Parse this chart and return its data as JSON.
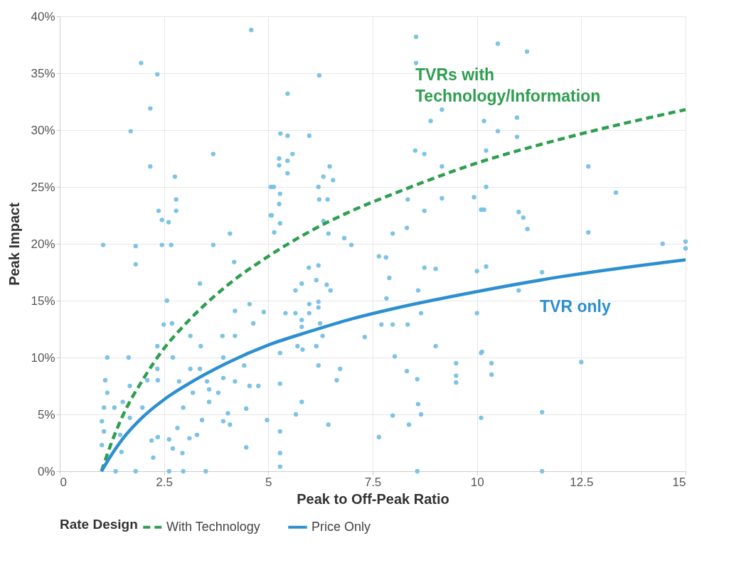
{
  "chart_data": {
    "type": "scatter",
    "xlabel": "Peak to Off-Peak Ratio",
    "ylabel": "Peak Impact",
    "legend_title": "Rate Design",
    "legend": "bottom",
    "grid": true,
    "xlim": [
      0,
      15
    ],
    "xticks": [
      {
        "value": 0,
        "label": "0"
      },
      2.5,
      {
        "value": 5,
        "label": "5"
      },
      7.5,
      {
        "value": 10,
        "label": "10"
      },
      12.5,
      {
        "value": 15,
        "label": "15"
      }
    ],
    "ylim": [
      0,
      40
    ],
    "yticks": [
      {
        "value": 0,
        "label": "0%"
      },
      {
        "value": 5,
        "label": "5%"
      },
      {
        "value": 10,
        "label": "10%"
      },
      {
        "value": 15,
        "label": "15%"
      },
      {
        "value": 20,
        "label": "20%"
      },
      {
        "value": 25,
        "label": "25%"
      },
      {
        "value": 30,
        "label": "30%"
      },
      {
        "value": 35,
        "label": "35%"
      },
      {
        "value": 40,
        "label": "40%"
      }
    ],
    "annotations": [
      "TVRs with\nTechnology/Information",
      "TVR only"
    ],
    "series": [
      {
        "marker": "circle",
        "color": "#7cc3e6",
        "x": [
          4.59,
          1.95,
          2.34,
          2.17,
          1.7,
          3.68,
          2.17,
          2.76,
          2.79,
          2.37,
          2.79,
          2.45,
          2.61,
          4.08,
          5.06,
          5.06,
          1.04,
          1.82,
          2.45,
          2.67,
          3.68,
          1.82,
          4.18,
          3.36,
          2.57,
          4.2,
          4.55,
          4.89,
          4.64,
          2.49,
          2.69,
          3.13,
          3.9,
          4.2,
          3.38,
          2.34,
          1.14,
          1.65,
          3.92,
          2.71,
          3.13,
          3.36,
          2.34,
          4.42,
          1.09,
          2.1,
          2.35,
          2.86,
          3.53,
          3.92,
          4.2,
          1.14,
          1.68,
          3.19,
          3.58,
          3.8,
          4.55,
          4.76,
          1.06,
          1.31,
          1.51,
          1.98,
          2.96,
          3.58,
          1.01,
          1.68,
          3.41,
          4.03,
          3.92,
          4.08,
          4.47,
          4.97,
          1.06,
          1.45,
          2.82,
          2.35,
          2.62,
          3.11,
          3.29,
          2.2,
          1.01,
          1.48,
          2.71,
          2.94,
          4.47,
          2.24,
          1.34,
          1.82,
          2.62,
          2.96,
          3.5,
          8.54,
          8.54,
          6.22,
          5.46,
          9.16,
          8.89,
          5.29,
          5.46,
          5.98,
          5.58,
          8.52,
          8.74,
          5.26,
          5.46,
          5.26,
          6.47,
          5.46,
          6.32,
          6.55,
          6.2,
          9.16,
          5.13,
          5.28,
          6.22,
          6.42,
          5.26,
          8.34,
          9.16,
          9.93,
          8.74,
          10.1,
          5.08,
          5.28,
          6.32,
          5.14,
          6.44,
          6.82,
          7.98,
          8.32,
          6.99,
          7.65,
          7.82,
          5.97,
          6.2,
          8.74,
          9.01,
          10.0,
          6.15,
          7.9,
          5.65,
          5.8,
          6.4,
          6.49,
          8.59,
          5.98,
          6.2,
          6.2,
          7.83,
          5.41,
          5.65,
          5.98,
          8.66,
          10.0,
          5.8,
          5.8,
          6.24,
          7.71,
          7.98,
          8.34,
          6.3,
          7.31,
          5.7,
          5.82,
          6.15,
          9.01,
          5.28,
          10.1,
          8.03,
          6.2,
          6.72,
          8.32,
          9.5,
          6.64,
          8.57,
          9.5,
          9.5,
          5.28,
          5.8,
          8.59,
          5.66,
          7.98,
          8.66,
          10.1,
          6.44,
          8.37,
          5.28,
          7.65,
          5.28,
          5.28,
          8.57,
          10.5,
          11.2,
          10.17,
          10.96,
          10.5,
          10.96,
          10.22,
          12.67,
          10.22,
          13.33,
          10.17,
          11.0,
          11.11,
          11.21,
          12.67,
          14.45,
          15.0,
          15.0,
          10.22,
          11.56,
          11.0,
          10.12,
          10.35,
          10.35,
          12.5,
          11.56,
          11.56
        ],
        "values": [
          38.8,
          35.9,
          34.9,
          31.9,
          29.9,
          27.9,
          26.8,
          25.9,
          23.9,
          22.9,
          22.9,
          22.1,
          21.9,
          20.9,
          25.0,
          22.5,
          19.9,
          19.8,
          19.9,
          19.9,
          19.9,
          18.2,
          18.4,
          16.5,
          15.0,
          14.1,
          14.7,
          14.0,
          13.0,
          12.9,
          13.0,
          11.9,
          11.9,
          11.9,
          11.0,
          11.0,
          10.0,
          10.0,
          10.0,
          10.0,
          9.0,
          9.0,
          9.0,
          9.3,
          8.0,
          8.0,
          8.0,
          7.9,
          7.9,
          8.2,
          7.9,
          6.9,
          7.5,
          6.9,
          7.2,
          6.9,
          7.5,
          7.5,
          5.6,
          5.6,
          6.1,
          5.6,
          5.6,
          6.1,
          4.4,
          4.7,
          4.5,
          5.1,
          4.4,
          4.1,
          5.5,
          4.5,
          3.5,
          3.2,
          3.8,
          3.0,
          2.8,
          2.9,
          3.2,
          2.7,
          2.3,
          1.7,
          2.0,
          1.6,
          2.1,
          1.2,
          0,
          0,
          0,
          0,
          0,
          38.2,
          35.9,
          34.8,
          33.2,
          31.8,
          30.8,
          29.7,
          29.5,
          29.5,
          27.9,
          28.2,
          27.9,
          27.5,
          27.3,
          26.9,
          26.8,
          26.2,
          25.9,
          25.6,
          25.0,
          26.8,
          25.0,
          24.4,
          23.9,
          23.9,
          23.5,
          23.9,
          24.0,
          24.1,
          22.9,
          23.0,
          22.5,
          21.8,
          22.0,
          21.0,
          20.9,
          20.5,
          20.9,
          21.4,
          19.9,
          18.9,
          18.8,
          17.9,
          18.1,
          17.9,
          17.8,
          17.6,
          16.8,
          17.0,
          15.9,
          16.5,
          16.4,
          15.9,
          15.9,
          14.7,
          14.9,
          14.4,
          15.2,
          13.9,
          13.9,
          13.9,
          13.9,
          13.9,
          13.3,
          12.7,
          13.0,
          12.9,
          12.9,
          12.9,
          11.9,
          11.8,
          11.0,
          10.7,
          11.0,
          11.0,
          10.4,
          10.4,
          10.1,
          9.3,
          9.0,
          8.8,
          9.5,
          8.0,
          8.1,
          8.4,
          7.8,
          7.7,
          6.1,
          5.9,
          5.0,
          4.9,
          5.0,
          4.7,
          4.1,
          4.1,
          3.5,
          3.0,
          1.6,
          0.4,
          0,
          37.6,
          36.9,
          30.8,
          31.1,
          29.9,
          29.4,
          28.2,
          26.8,
          25.0,
          24.5,
          23.0,
          22.8,
          22.3,
          21.3,
          21.0,
          20.0,
          20.2,
          19.6,
          18.0,
          17.5,
          15.9,
          10.5,
          9.5,
          8.5,
          9.6,
          5.2,
          0
        ]
      },
      {
        "type": "line",
        "name": "With Technology",
        "color": "#2e9e50",
        "line_style": "dashed",
        "x": [
          1,
          1.25,
          1.5,
          2,
          2.5,
          3,
          4,
          5,
          6,
          7,
          8,
          10,
          12,
          15
        ],
        "values": [
          0,
          2.6,
          4.8,
          8.1,
          10.8,
          12.9,
          16.3,
          18.9,
          21.1,
          22.9,
          24.4,
          27.1,
          29.2,
          31.8
        ]
      },
      {
        "type": "line",
        "name": "Price Only",
        "color": "#2b8fd0",
        "line_style": "solid",
        "x": [
          1,
          1.25,
          1.5,
          2,
          2.5,
          3,
          4,
          5,
          6,
          7,
          8,
          10,
          12,
          15
        ],
        "values": [
          0,
          1.5,
          2.8,
          4.8,
          6.3,
          7.5,
          9.5,
          11.1,
          12.3,
          13.4,
          14.3,
          15.8,
          17.1,
          18.6
        ]
      }
    ]
  }
}
